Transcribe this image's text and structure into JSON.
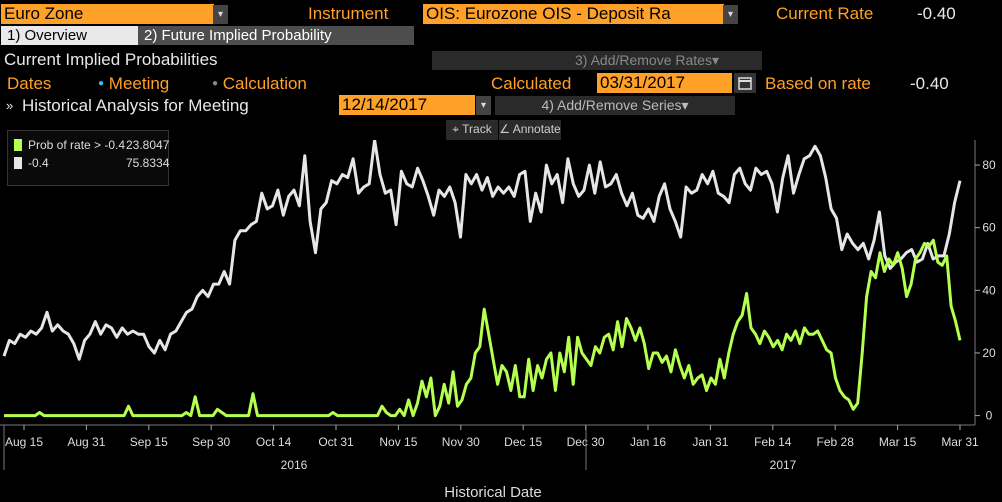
{
  "header": {
    "region": "Euro Zone",
    "instrument_label": "Instrument",
    "instrument_value": "OIS: Eurozone OIS - Deposit Ra",
    "current_rate_label": "Current Rate",
    "current_rate_value": "-0.40"
  },
  "tabs": [
    {
      "label": "1) Overview",
      "active": true
    },
    {
      "label": "2) Future Implied Probability",
      "active": false
    }
  ],
  "section": {
    "title": "Current Implied Probabilities",
    "add_remove_rates": "3) Add/Remove Rates",
    "dates_label": "Dates",
    "meeting_option": "Meeting",
    "calculation_option": "Calculation",
    "calculated_label": "Calculated",
    "calculated_date": "03/31/2017",
    "based_on_label": "Based on rate",
    "based_on_value": "-0.40"
  },
  "historical": {
    "title": "Historical Analysis for Meeting",
    "meeting_date": "12/14/2017",
    "add_remove_series": "4) Add/Remove Series"
  },
  "toolbar": {
    "track": "Track",
    "annotate": "Annotate"
  },
  "legend": [
    {
      "name": "Prob of rate > -0.4",
      "value": "23.8047",
      "color": "#b4ff50"
    },
    {
      "name": "-0.4",
      "value": "75.8334",
      "color": "#e6e6e6"
    }
  ],
  "chart_data": {
    "type": "line",
    "xlabel": "Historical Date",
    "x_ticks": [
      "Aug 15",
      "Aug 31",
      "Sep 15",
      "Sep 30",
      "Oct 14",
      "Oct 31",
      "Nov 15",
      "Nov 30",
      "Dec 15",
      "Dec 30",
      "Jan 16",
      "Jan 31",
      "Feb 14",
      "Feb 28",
      "Mar 15",
      "Mar 31"
    ],
    "year_labels": [
      "2016",
      "2017"
    ],
    "y_ticks": [
      0,
      20,
      40,
      60,
      80
    ],
    "ylim": [
      -3,
      88
    ],
    "grid": false,
    "legend_position": "top-left",
    "series": [
      {
        "name": "-0.4",
        "color": "#e6e6e6",
        "values": [
          19,
          24,
          23,
          26,
          25,
          27,
          26,
          28,
          33,
          27,
          29,
          27,
          26,
          23,
          18,
          24,
          26,
          30,
          26,
          29,
          28,
          25,
          28,
          26,
          27,
          26,
          26,
          22,
          20,
          24,
          21,
          26,
          27,
          30,
          33,
          34,
          38,
          40,
          38,
          42,
          42,
          46,
          42,
          56,
          59,
          59,
          61,
          62,
          71,
          66,
          67,
          72,
          64,
          70,
          72,
          67,
          83,
          62,
          52,
          66,
          68,
          75,
          74,
          77,
          76,
          82,
          71,
          73,
          74,
          88,
          77,
          71,
          72,
          61,
          78,
          74,
          73,
          79,
          75,
          70,
          64,
          72,
          70,
          73,
          68,
          57,
          77,
          74,
          77,
          72,
          76,
          70,
          73,
          71,
          73,
          70,
          77,
          78,
          62,
          71,
          65,
          80,
          74,
          77,
          68,
          82,
          74,
          70,
          72,
          80,
          71,
          81,
          73,
          74,
          77,
          71,
          67,
          71,
          64,
          63,
          66,
          62,
          70,
          74,
          66,
          62,
          57,
          73,
          71,
          72,
          77,
          74,
          78,
          71,
          70,
          68,
          77,
          79,
          74,
          72,
          79,
          77,
          78,
          74,
          65,
          76,
          83,
          71,
          77,
          82,
          83,
          86,
          83,
          76,
          66,
          63,
          53,
          58,
          55,
          53,
          55,
          50,
          56,
          65,
          51,
          47,
          49,
          50,
          52,
          53,
          49,
          50,
          55,
          50,
          51,
          51,
          58,
          68,
          75
        ],
        "note": "white series"
      },
      {
        "name": "Prob of rate > -0.4",
        "color": "#b4ff50",
        "values": [
          0,
          0,
          0,
          0,
          0,
          0,
          0,
          0,
          1,
          0,
          0,
          0,
          0,
          0,
          0,
          0,
          0,
          0,
          0,
          0,
          0,
          0,
          0,
          0,
          0,
          0,
          0,
          0,
          3,
          0,
          0,
          0,
          0,
          0,
          0,
          0,
          0,
          0,
          0,
          0,
          0,
          1,
          0,
          6,
          0,
          0,
          0,
          0,
          2,
          1,
          0,
          0,
          0,
          0,
          0,
          0,
          7,
          0,
          0,
          0,
          0,
          0,
          0,
          0,
          0,
          0,
          0,
          0,
          0,
          0,
          0,
          0,
          0,
          0,
          1,
          0,
          0,
          0,
          0,
          0,
          0,
          0,
          0,
          0,
          0,
          3,
          1,
          0,
          0,
          2,
          0,
          5,
          0,
          4,
          11,
          6,
          12,
          0,
          3,
          10,
          4,
          14,
          3,
          5,
          10,
          12,
          20,
          22,
          34,
          26,
          18,
          10,
          16,
          14,
          8,
          16,
          6,
          6,
          18,
          8,
          16,
          12,
          18,
          20,
          8,
          20,
          14,
          25,
          10,
          25,
          20,
          18,
          16,
          22,
          20,
          25,
          26,
          21,
          30,
          22,
          31,
          28,
          24,
          28,
          23,
          15,
          20,
          20,
          17,
          19,
          14,
          21,
          16,
          12,
          16,
          10,
          12,
          13,
          8,
          12,
          10,
          18,
          12,
          20,
          26,
          30,
          32,
          39,
          28,
          26,
          23,
          27,
          25,
          22,
          24,
          21,
          26,
          24,
          27,
          23,
          28,
          26,
          26,
          27,
          24,
          21,
          20,
          12,
          8,
          6,
          5,
          2,
          4,
          20,
          38,
          46,
          44,
          52,
          46,
          50,
          48,
          52,
          47,
          38,
          42,
          50,
          52,
          55,
          54,
          56,
          49,
          48,
          51,
          35,
          30,
          24
        ],
        "note": "green series"
      }
    ]
  }
}
